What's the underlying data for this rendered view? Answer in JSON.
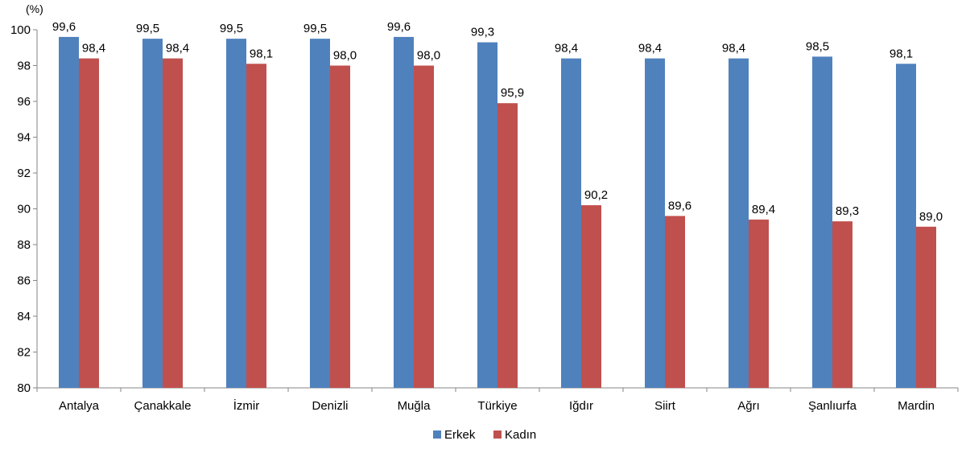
{
  "chart_data": {
    "type": "bar",
    "unit_label": "(%)",
    "categories": [
      "Antalya",
      "Çanakkale",
      "İzmir",
      "Denizli",
      "Muğla",
      "Türkiye",
      "Iğdır",
      "Siirt",
      "Ağrı",
      "Şanlıurfa",
      "Mardin"
    ],
    "series": [
      {
        "name": "Erkek",
        "color": "#4F81BD",
        "values": [
          99.6,
          99.5,
          99.5,
          99.5,
          99.6,
          99.3,
          98.4,
          98.4,
          98.4,
          98.5,
          98.1
        ],
        "labels": [
          "99,6",
          "99,5",
          "99,5",
          "99,5",
          "99,6",
          "99,3",
          "98,4",
          "98,4",
          "98,4",
          "98,5",
          "98,1"
        ]
      },
      {
        "name": "Kadın",
        "color": "#C0504D",
        "values": [
          98.4,
          98.4,
          98.1,
          98.0,
          98.0,
          95.9,
          90.2,
          89.6,
          89.4,
          89.3,
          89.0
        ],
        "labels": [
          "98,4",
          "98,4",
          "98,1",
          "98,0",
          "98,0",
          "95,9",
          "90,2",
          "89,6",
          "89,4",
          "89,3",
          "89,0"
        ]
      }
    ],
    "ylim": [
      80,
      100
    ],
    "yticks": [
      "80",
      "82",
      "84",
      "86",
      "88",
      "90",
      "92",
      "94",
      "96",
      "98",
      "100"
    ],
    "title": "",
    "xlabel": "",
    "ylabel": "",
    "grid": false,
    "legend_position": "bottom-center"
  }
}
